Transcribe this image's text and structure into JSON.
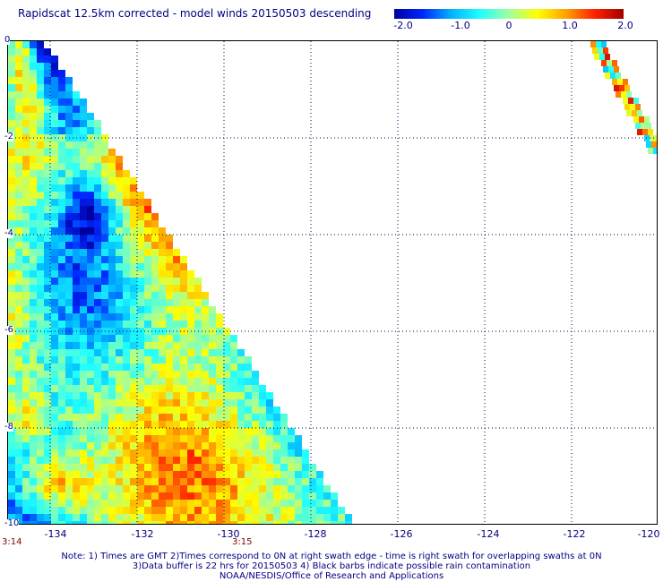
{
  "title": "Rapidscat 12.5km corrected - model winds 20150503 descending",
  "colorbar": {
    "labels": [
      "-2.0",
      "-1.0",
      "0",
      "1.0",
      "2.0"
    ],
    "min": -2.0,
    "max": 2.0,
    "colors": [
      "#0000a0",
      "#0028ff",
      "#00b4ff",
      "#20ffff",
      "#a0ffa0",
      "#ffff00",
      "#ffa000",
      "#ff2000",
      "#a00000"
    ]
  },
  "map": {
    "lon_range": [
      -135,
      -120
    ],
    "lat_range": [
      -10,
      0
    ],
    "x_ticks": [
      "-134",
      "-132",
      "-130",
      "-128",
      "-126",
      "-124",
      "-122",
      "-120"
    ],
    "y_ticks": [
      "0",
      "-2",
      "-4",
      "-6",
      "-8",
      "-10"
    ],
    "times": [
      "3:14",
      "3:15"
    ]
  },
  "notes": [
    "Note: 1) Times are GMT 2)Times correspond to 0N at right swath edge - time is right swath for overlapping swaths at 0N",
    "3)Data buffer is 22 hrs for 20150503 4) Black barbs indicate possible rain contamination",
    "NOAA/NESDIS/Office of Research and Applications"
  ]
}
